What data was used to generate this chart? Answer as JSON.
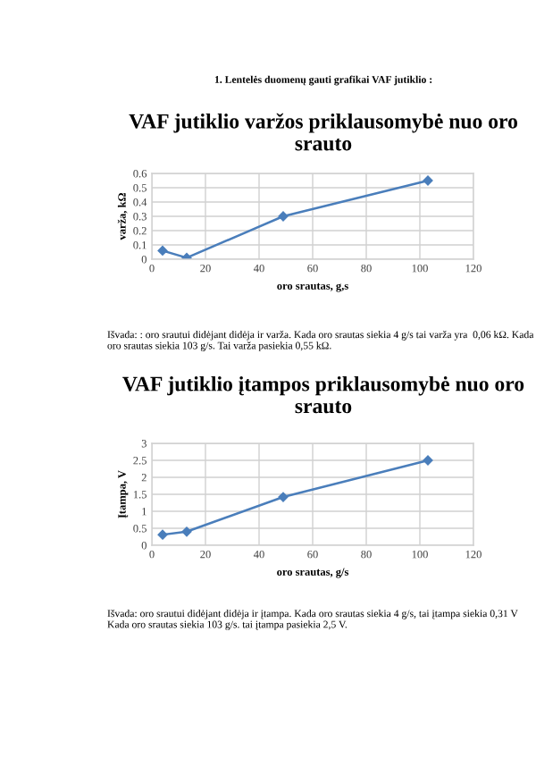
{
  "chart_data": [
    {
      "type": "line",
      "title": "VAF jutiklio varžos priklausomybė nuo oro srauto",
      "xlabel": "oro srautas, g,s",
      "ylabel": "varža, kΩ",
      "x": [
        4,
        13,
        49,
        103
      ],
      "values": [
        0.06,
        0.01,
        0.3,
        0.55
      ],
      "color": "#4a7ebb",
      "marker": "diamond",
      "line_style": "solid",
      "xlim": [
        0,
        120
      ],
      "xticks": [
        0,
        20,
        40,
        60,
        80,
        100,
        120
      ],
      "ylim": [
        0,
        0.6
      ],
      "yticks": [
        0,
        0.1,
        0.2,
        0.3,
        0.4,
        0.5,
        0.6
      ],
      "grid": true,
      "legend": false,
      "annotations": [
        "1. Lentelės duomenų gauti grafikai VAF jutiklio :",
        "Išvada: : oro srautui didėjant didėja ir varža. Kada oro srautas siekia 4 g/s tai varža yra  0,06 kΩ. Kada oro srautas siekia 103 g/s. Tai varža pasiekia 0,55 kΩ."
      ]
    },
    {
      "type": "line",
      "title": "VAF jutiklio įtampos priklausomybė nuo oro srauto",
      "xlabel": "oro srautas, g/s",
      "ylabel": "Įtampa, V",
      "x": [
        4,
        13,
        49,
        103
      ],
      "values": [
        0.31,
        0.4,
        1.42,
        2.5
      ],
      "color": "#4a7ebb",
      "marker": "diamond",
      "line_style": "solid",
      "xlim": [
        0,
        120
      ],
      "xticks": [
        0,
        20,
        40,
        60,
        80,
        100,
        120
      ],
      "ylim": [
        0,
        3
      ],
      "yticks": [
        0,
        0.5,
        1,
        1.5,
        2,
        2.5,
        3
      ],
      "grid": true,
      "legend": false,
      "annotations": [
        "Išvada: oro srautui didėjant didėja ir įtampa. Kada oro srautas siekia 4 g/s, tai įtampa siekia 0,31 V Kada oro srautas siekia 103 g/s. tai įtampa pasiekia 2,5 V."
      ]
    }
  ]
}
